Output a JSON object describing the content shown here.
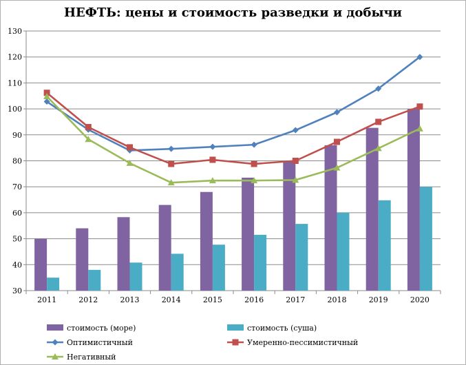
{
  "chart_data": {
    "type": "bar",
    "title": "НЕФТЬ: цены и стоимость разведки и добычи",
    "categories": [
      "2011",
      "2012",
      "2013",
      "2014",
      "2015",
      "2016",
      "2017",
      "2018",
      "2019",
      "2020"
    ],
    "ylim": [
      30,
      130
    ],
    "yticks": [
      30,
      40,
      50,
      60,
      70,
      80,
      90,
      100,
      110,
      120,
      130
    ],
    "grid": true,
    "legend_position": "bottom",
    "bar_series": [
      {
        "name": "стоимость (море)",
        "color": "#8064a2",
        "values": [
          50,
          54,
          58.3,
          63,
          68,
          73.5,
          80,
          86,
          92.7,
          100
        ]
      },
      {
        "name": "стоимость (суша)",
        "color": "#4bacc6",
        "values": [
          35,
          38,
          40.8,
          44.2,
          47.7,
          51.5,
          55.7,
          60,
          64.8,
          70
        ]
      }
    ],
    "line_series": [
      {
        "name": "Оптимистичный",
        "color": "#4f81bd",
        "marker": "diamond",
        "values": [
          102.8,
          92,
          84,
          84.6,
          85.4,
          86.2,
          91.8,
          98.7,
          107.8,
          120
        ]
      },
      {
        "name": "Умеренно-пессимистичный",
        "color": "#c0504d",
        "marker": "square",
        "values": [
          106.2,
          93,
          85.2,
          78.8,
          80.4,
          78.8,
          80,
          87.3,
          95,
          100.9
        ]
      },
      {
        "name": "Негативный",
        "color": "#9bbb59",
        "marker": "triangle",
        "values": [
          104.8,
          88.3,
          79.1,
          71.6,
          72.4,
          72.4,
          72.6,
          77.3,
          84.8,
          92.4
        ]
      }
    ]
  }
}
